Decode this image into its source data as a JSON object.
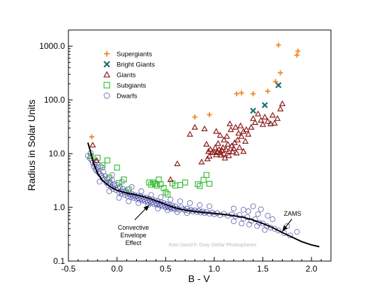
{
  "chart_data": {
    "type": "scatter",
    "title": "",
    "xlabel": "B - V",
    "ylabel": "Radius in Solar Units",
    "xlim": [
      -0.5,
      2.2
    ],
    "ylim": [
      0.1,
      2000
    ],
    "y_scale": "log",
    "x_ticks": [
      -0.5,
      0.0,
      0.5,
      1.0,
      1.5,
      2.0
    ],
    "x_tick_labels": [
      "-0.5",
      "0.0",
      "0.5",
      "1.0",
      "1.5",
      "2.0"
    ],
    "y_ticks": [
      0.1,
      1.0,
      10.0,
      100.0,
      1000.0
    ],
    "y_tick_labels": [
      "0.1",
      "1.0",
      "10.0",
      "100.0",
      "1000.0"
    ],
    "grid": false,
    "legend_position": "top-left",
    "series": [
      {
        "name": "Supergiants",
        "marker": "plus",
        "color": "#f0882a",
        "points": [
          [
            -0.26,
            20.5
          ],
          [
            0.8,
            48
          ],
          [
            0.95,
            53
          ],
          [
            1.23,
            130
          ],
          [
            1.28,
            135
          ],
          [
            1.4,
            130
          ],
          [
            1.55,
            145
          ],
          [
            1.63,
            220
          ],
          [
            1.68,
            320
          ],
          [
            1.66,
            1050
          ],
          [
            1.85,
            680
          ],
          [
            1.86,
            810
          ]
        ]
      },
      {
        "name": "Bright Giants",
        "marker": "x",
        "color": "#1e6e6e",
        "points": [
          [
            1.4,
            63
          ],
          [
            1.52,
            80
          ],
          [
            1.66,
            188
          ]
        ]
      },
      {
        "name": "Giants",
        "marker": "triangle",
        "color": "#8c1c1c",
        "points": [
          [
            -0.25,
            14.5
          ],
          [
            -0.21,
            7.5
          ],
          [
            0.55,
            3.3
          ],
          [
            0.9,
            29
          ],
          [
            0.92,
            15
          ],
          [
            0.94,
            11
          ],
          [
            0.95,
            9
          ],
          [
            0.96,
            12
          ],
          [
            0.98,
            10.5
          ],
          [
            1.0,
            10.5
          ],
          [
            1.01,
            13
          ],
          [
            1.02,
            9.5
          ],
          [
            1.03,
            11
          ],
          [
            1.04,
            15.5
          ],
          [
            1.05,
            12
          ],
          [
            1.06,
            10.5
          ],
          [
            1.07,
            9.4
          ],
          [
            1.08,
            11.5
          ],
          [
            1.09,
            13
          ],
          [
            1.1,
            18
          ],
          [
            1.1,
            10
          ],
          [
            1.11,
            8.3
          ],
          [
            1.12,
            12
          ],
          [
            1.13,
            21
          ],
          [
            1.14,
            15
          ],
          [
            1.15,
            11
          ],
          [
            1.15,
            9.2
          ],
          [
            1.17,
            28
          ],
          [
            1.18,
            14
          ],
          [
            1.19,
            10.8
          ],
          [
            1.2,
            12.5
          ],
          [
            1.21,
            16
          ],
          [
            1.22,
            31
          ],
          [
            1.23,
            10.3
          ],
          [
            1.24,
            18
          ],
          [
            1.25,
            24
          ],
          [
            1.26,
            13
          ],
          [
            1.27,
            33
          ],
          [
            1.28,
            21
          ],
          [
            1.3,
            11
          ],
          [
            1.3,
            26
          ],
          [
            1.32,
            17
          ],
          [
            1.33,
            28
          ],
          [
            1.35,
            23
          ],
          [
            1.38,
            31
          ],
          [
            1.4,
            45
          ],
          [
            1.42,
            38
          ],
          [
            1.45,
            55
          ],
          [
            1.48,
            42
          ],
          [
            1.5,
            35
          ],
          [
            1.52,
            48
          ],
          [
            1.55,
            40
          ],
          [
            1.58,
            36
          ],
          [
            1.6,
            52
          ],
          [
            1.62,
            37
          ],
          [
            1.65,
            45
          ],
          [
            1.68,
            68
          ],
          [
            1.7,
            85
          ],
          [
            0.75,
            23
          ],
          [
            0.8,
            31
          ],
          [
            1.02,
            26
          ],
          [
            1.06,
            22
          ],
          [
            0.93,
            8
          ],
          [
            1.16,
            36
          ],
          [
            0.62,
            6.5
          ],
          [
            0.87,
            7
          ]
        ]
      },
      {
        "name": "Subgiants",
        "marker": "square",
        "color": "#2eb82e",
        "points": [
          [
            -0.27,
            9.0
          ],
          [
            -0.2,
            8.4
          ],
          [
            -0.15,
            6.1
          ],
          [
            -0.1,
            7.5
          ],
          [
            0.0,
            5.5
          ],
          [
            -0.08,
            3.6
          ],
          [
            0.02,
            2.85
          ],
          [
            0.07,
            3.3
          ],
          [
            0.12,
            2.15
          ],
          [
            0.33,
            2.9
          ],
          [
            0.35,
            2.65
          ],
          [
            0.37,
            2.9
          ],
          [
            0.39,
            2.75
          ],
          [
            0.41,
            2.55
          ],
          [
            0.43,
            3.3
          ],
          [
            0.45,
            2.7
          ],
          [
            0.48,
            2.3
          ],
          [
            0.5,
            1.9
          ],
          [
            0.52,
            1.75
          ],
          [
            0.57,
            2.8
          ],
          [
            0.6,
            2.55
          ],
          [
            0.65,
            2.6
          ],
          [
            0.7,
            2.9
          ],
          [
            0.83,
            2.7
          ],
          [
            0.85,
            2.5
          ],
          [
            0.89,
            3.25
          ],
          [
            0.92,
            4.0
          ],
          [
            0.95,
            2.75
          ]
        ]
      },
      {
        "name": "Dwarfs",
        "marker": "circle",
        "color": "#4b4ba8",
        "points": [
          [
            -0.3,
            9.1
          ],
          [
            -0.28,
            8.2
          ],
          [
            -0.27,
            10.3
          ],
          [
            -0.26,
            7.5
          ],
          [
            -0.25,
            6.8
          ],
          [
            -0.24,
            5.8
          ],
          [
            -0.23,
            6.2
          ],
          [
            -0.22,
            5.1
          ],
          [
            -0.21,
            4.8
          ],
          [
            -0.2,
            5.5
          ],
          [
            -0.19,
            4.5
          ],
          [
            -0.18,
            4.2
          ],
          [
            -0.17,
            5.8
          ],
          [
            -0.16,
            3.9
          ],
          [
            -0.15,
            3.5
          ],
          [
            -0.14,
            4.6
          ],
          [
            -0.13,
            3.3
          ],
          [
            -0.12,
            3.8
          ],
          [
            -0.11,
            2.9
          ],
          [
            -0.1,
            3.4
          ],
          [
            -0.09,
            2.6
          ],
          [
            -0.08,
            3.0
          ],
          [
            -0.07,
            2.8
          ],
          [
            -0.06,
            2.4
          ],
          [
            -0.05,
            3.2
          ],
          [
            -0.04,
            2.2
          ],
          [
            -0.03,
            2.7
          ],
          [
            -0.02,
            2.5
          ],
          [
            -0.01,
            2.1
          ],
          [
            0.0,
            2.6
          ],
          [
            0.01,
            2.3
          ],
          [
            0.02,
            1.9
          ],
          [
            0.03,
            2.4
          ],
          [
            0.04,
            2.0
          ],
          [
            0.05,
            1.8
          ],
          [
            0.06,
            2.2
          ],
          [
            0.07,
            1.95
          ],
          [
            0.08,
            1.7
          ],
          [
            0.09,
            2.05
          ],
          [
            0.1,
            1.85
          ],
          [
            0.11,
            1.6
          ],
          [
            0.12,
            1.9
          ],
          [
            0.13,
            1.75
          ],
          [
            0.14,
            1.55
          ],
          [
            0.15,
            1.8
          ],
          [
            0.16,
            1.65
          ],
          [
            0.17,
            1.5
          ],
          [
            0.18,
            1.7
          ],
          [
            0.19,
            1.6
          ],
          [
            0.2,
            1.45
          ],
          [
            0.21,
            1.65
          ],
          [
            0.22,
            1.5
          ],
          [
            0.23,
            1.4
          ],
          [
            0.24,
            1.6
          ],
          [
            0.25,
            1.45
          ],
          [
            0.26,
            1.35
          ],
          [
            0.27,
            1.55
          ],
          [
            0.28,
            1.4
          ],
          [
            0.29,
            1.3
          ],
          [
            0.3,
            1.5
          ],
          [
            0.31,
            1.35
          ],
          [
            0.32,
            1.25
          ],
          [
            0.33,
            1.45
          ],
          [
            0.34,
            1.3
          ],
          [
            0.35,
            1.2
          ],
          [
            0.36,
            1.4
          ],
          [
            0.37,
            1.25
          ],
          [
            0.38,
            1.15
          ],
          [
            0.39,
            1.35
          ],
          [
            0.4,
            1.2
          ],
          [
            0.41,
            1.12
          ],
          [
            0.42,
            1.3
          ],
          [
            0.43,
            1.18
          ],
          [
            0.44,
            1.08
          ],
          [
            0.45,
            1.25
          ],
          [
            0.46,
            1.12
          ],
          [
            0.47,
            1.05
          ],
          [
            0.48,
            1.2
          ],
          [
            0.49,
            1.1
          ],
          [
            0.5,
            1.0
          ],
          [
            0.51,
            1.15
          ],
          [
            0.52,
            1.05
          ],
          [
            0.53,
            0.98
          ],
          [
            0.54,
            1.1
          ],
          [
            0.55,
            1.0
          ],
          [
            0.56,
            0.95
          ],
          [
            0.57,
            1.08
          ],
          [
            0.58,
            0.98
          ],
          [
            0.59,
            0.92
          ],
          [
            0.6,
            1.05
          ],
          [
            0.62,
            0.95
          ],
          [
            0.64,
            0.9
          ],
          [
            0.66,
            1.0
          ],
          [
            0.68,
            0.92
          ],
          [
            0.7,
            0.88
          ],
          [
            0.72,
            0.95
          ],
          [
            0.74,
            0.86
          ],
          [
            0.76,
            0.9
          ],
          [
            0.78,
            0.84
          ],
          [
            0.8,
            0.88
          ],
          [
            0.82,
            0.82
          ],
          [
            0.84,
            0.86
          ],
          [
            0.86,
            0.8
          ],
          [
            0.88,
            0.84
          ],
          [
            0.9,
            0.78
          ],
          [
            0.92,
            0.82
          ],
          [
            0.95,
            0.76
          ],
          [
            0.98,
            0.8
          ],
          [
            1.0,
            0.74
          ],
          [
            1.03,
            0.78
          ],
          [
            1.06,
            0.72
          ],
          [
            1.1,
            0.76
          ],
          [
            1.14,
            0.7
          ],
          [
            1.18,
            0.74
          ],
          [
            1.22,
            0.68
          ],
          [
            1.26,
            0.72
          ],
          [
            1.3,
            0.62
          ],
          [
            1.34,
            0.66
          ],
          [
            1.38,
            0.56
          ],
          [
            1.42,
            0.6
          ],
          [
            1.46,
            0.52
          ],
          [
            1.5,
            0.5
          ],
          [
            1.54,
            0.45
          ],
          [
            1.58,
            0.42
          ],
          [
            1.62,
            0.4
          ],
          [
            1.66,
            0.37
          ],
          [
            1.72,
            0.33
          ],
          [
            1.78,
            0.3
          ],
          [
            -0.22,
            7.0
          ],
          [
            -0.15,
            5.5
          ],
          [
            -0.05,
            4.0
          ],
          [
            0.05,
            3.0
          ],
          [
            0.15,
            2.4
          ],
          [
            0.25,
            2.0
          ],
          [
            0.35,
            1.7
          ],
          [
            0.45,
            1.55
          ],
          [
            0.55,
            1.4
          ],
          [
            0.65,
            1.3
          ],
          [
            0.75,
            1.2
          ],
          [
            0.85,
            1.1
          ],
          [
            0.95,
            1.05
          ],
          [
            -0.18,
            3.0
          ],
          [
            -0.08,
            2.0
          ],
          [
            0.02,
            1.5
          ],
          [
            0.12,
            1.3
          ],
          [
            0.22,
            1.2
          ],
          [
            0.32,
            1.1
          ],
          [
            0.42,
            0.95
          ],
          [
            0.52,
            0.88
          ],
          [
            0.62,
            0.82
          ],
          [
            0.72,
            0.78
          ],
          [
            1.2,
            0.95
          ],
          [
            1.3,
            0.9
          ],
          [
            1.35,
            0.85
          ],
          [
            1.45,
            0.75
          ],
          [
            1.55,
            0.7
          ],
          [
            1.6,
            0.6
          ],
          [
            1.4,
            1.05
          ],
          [
            1.48,
            0.92
          ],
          [
            1.75,
            0.45
          ],
          [
            1.85,
            0.35
          ],
          [
            1.2,
            0.55
          ],
          [
            1.28,
            0.5
          ],
          [
            1.36,
            0.48
          ],
          [
            1.44,
            0.45
          ],
          [
            1.52,
            0.38
          ]
        ]
      }
    ],
    "fit_line": {
      "name": "ZAMS",
      "color": "#000000",
      "x": [
        -0.3,
        -0.27,
        -0.24,
        -0.2,
        -0.15,
        -0.1,
        -0.05,
        0.0,
        0.05,
        0.1,
        0.15,
        0.2,
        0.25,
        0.3,
        0.35,
        0.4,
        0.45,
        0.5,
        0.55,
        0.6,
        0.65,
        0.7,
        0.8,
        0.9,
        1.0,
        1.1,
        1.2,
        1.3,
        1.4,
        1.5,
        1.6,
        1.7,
        1.8,
        1.9,
        2.0,
        2.08
      ],
      "y": [
        16.0,
        10.5,
        6.5,
        4.3,
        3.2,
        2.65,
        2.3,
        2.08,
        1.95,
        1.85,
        1.78,
        1.7,
        1.62,
        1.53,
        1.43,
        1.33,
        1.23,
        1.13,
        1.05,
        0.98,
        0.93,
        0.89,
        0.84,
        0.8,
        0.77,
        0.74,
        0.7,
        0.65,
        0.58,
        0.5,
        0.42,
        0.34,
        0.28,
        0.23,
        0.2,
        0.185
      ]
    },
    "annotations": [
      {
        "lines": [
          "Convective",
          "Envelope",
          "Effect"
        ],
        "points_to": [
          0.33,
          1.1
        ]
      },
      {
        "lines": [
          "ZAMS"
        ],
        "points_to": [
          1.7,
          0.36
        ]
      }
    ],
    "credit": "from David F. Gray   Stellar Photospheres"
  }
}
